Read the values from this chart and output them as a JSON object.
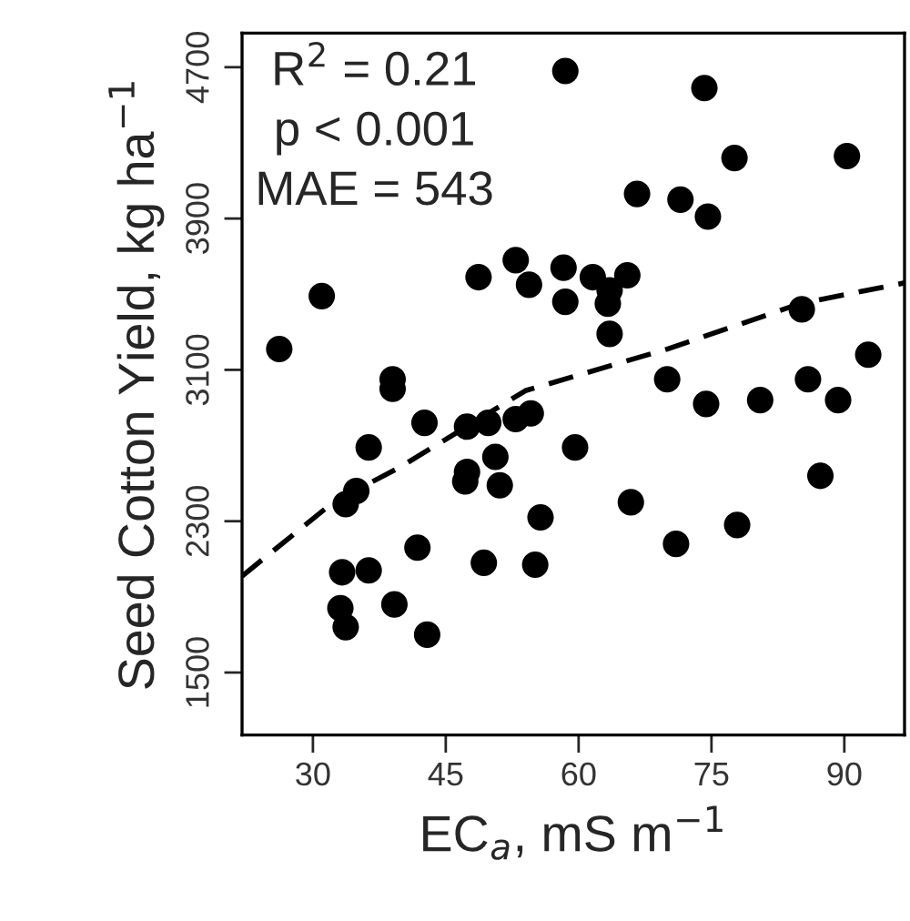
{
  "chart_data": {
    "type": "scatter",
    "xlabel": "EC$_{a}$, mS m$^{−1}$",
    "ylabel": "Seed Cotton Yield, kg ha$^{−1}$",
    "annotations": [
      "R$^{2}$ = 0.21",
      "p < 0.001",
      "MAE = 543"
    ],
    "xlim": [
      22,
      96.8
    ],
    "ylim": [
      1170,
      4880
    ],
    "xticks": [
      30,
      45,
      60,
      75,
      90
    ],
    "yticks": [
      1500,
      2300,
      3100,
      3900,
      4700
    ],
    "grid": false,
    "legend": false,
    "series": [
      {
        "color": "#000000",
        "marker": "circle",
        "x": [
          26.2,
          31.0,
          39.0,
          39.0,
          48.7,
          52.9,
          54.4,
          58.5,
          74.2,
          77.6,
          90.3,
          66.6,
          71.5,
          74.6,
          58.3,
          61.6,
          65.5,
          63.5,
          58.5,
          63.3,
          63.5,
          85.2,
          92.7,
          70.0,
          85.9,
          74.4,
          80.5,
          89.3,
          54.6,
          59.6,
          55.7,
          55.1,
          65.9,
          71.0,
          77.9,
          87.3,
          42.6,
          36.3,
          34.9,
          33.7,
          47.4,
          49.8,
          52.9,
          50.6,
          47.4,
          47.2,
          51.1,
          41.8,
          33.3,
          36.3,
          49.3,
          33.1,
          33.7,
          39.2,
          42.9
        ],
        "values": [
          3210,
          3490,
          3050,
          3000,
          3590,
          3680,
          3550,
          4680,
          4590,
          4220,
          4230,
          4030,
          4000,
          3910,
          3640,
          3590,
          3600,
          3520,
          3460,
          3450,
          3290,
          3420,
          3180,
          3050,
          3050,
          2920,
          2940,
          2940,
          2870,
          2690,
          2320,
          2070,
          2400,
          2180,
          2280,
          2540,
          2820,
          2690,
          2460,
          2390,
          2800,
          2820,
          2840,
          2640,
          2560,
          2510,
          2490,
          2160,
          2030,
          2040,
          2080,
          1840,
          1740,
          1860,
          1700
        ]
      },
      {
        "type": "line",
        "color": "#000000",
        "line_style": "dashed",
        "marker": "none",
        "x": [
          22,
          32.3,
          40,
          54,
          70,
          85,
          96.8
        ],
        "values": [
          2010,
          2400,
          2590,
          2990,
          3210,
          3450,
          3560
        ]
      }
    ]
  }
}
